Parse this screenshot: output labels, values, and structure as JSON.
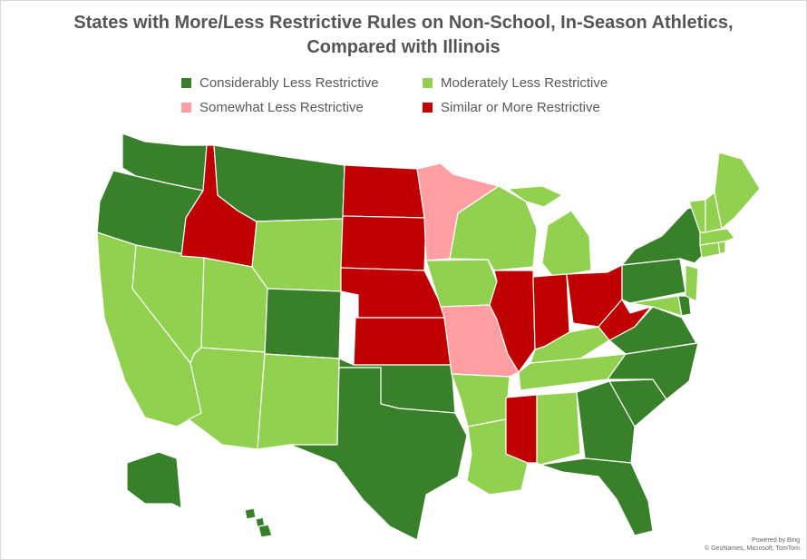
{
  "title_line1": "States with More/Less Restrictive Rules on Non-School, In-Season Athletics,",
  "title_line2": "Compared with Illinois",
  "legend": [
    {
      "key": "considerably",
      "label": "Considerably Less Restrictive",
      "color": "#38802a"
    },
    {
      "key": "moderately",
      "label": "Moderately Less Restrictive",
      "color": "#92d050"
    },
    {
      "key": "somewhat",
      "label": "Somewhat Less Restrictive",
      "color": "#ff9fa3"
    },
    {
      "key": "similar",
      "label": "Similar or More Restrictive",
      "color": "#c00000"
    }
  ],
  "state_categories": {
    "WA": "considerably",
    "OR": "considerably",
    "MT": "considerably",
    "CO": "considerably",
    "TX": "considerably",
    "OK": "considerably",
    "NY": "considerably",
    "PA": "considerably",
    "VA": "considerably",
    "NC": "considerably",
    "SC": "considerably",
    "GA": "considerably",
    "FL": "considerably",
    "DE": "considerably",
    "AK": "considerably",
    "HI": "considerably",
    "CA": "moderately",
    "NV": "moderately",
    "UT": "moderately",
    "AZ": "moderately",
    "NM": "moderately",
    "WY": "moderately",
    "IA": "moderately",
    "WI": "moderately",
    "MI": "moderately",
    "KY": "moderately",
    "TN": "moderately",
    "AR": "moderately",
    "LA": "moderately",
    "AL": "moderately",
    "ME": "moderately",
    "NH": "moderately",
    "VT": "moderately",
    "MA": "moderately",
    "CT": "moderately",
    "RI": "moderately",
    "NJ": "moderately",
    "MD": "moderately",
    "MN": "somewhat",
    "MO": "somewhat",
    "ID": "similar",
    "ND": "similar",
    "SD": "similar",
    "NE": "similar",
    "KS": "similar",
    "IL": "similar",
    "IN": "similar",
    "OH": "similar",
    "WV": "similar",
    "MS": "similar"
  },
  "attribution_line1": "Powered by Bing",
  "attribution_line2": "© GeoNames, Microsoft, TomTom"
}
